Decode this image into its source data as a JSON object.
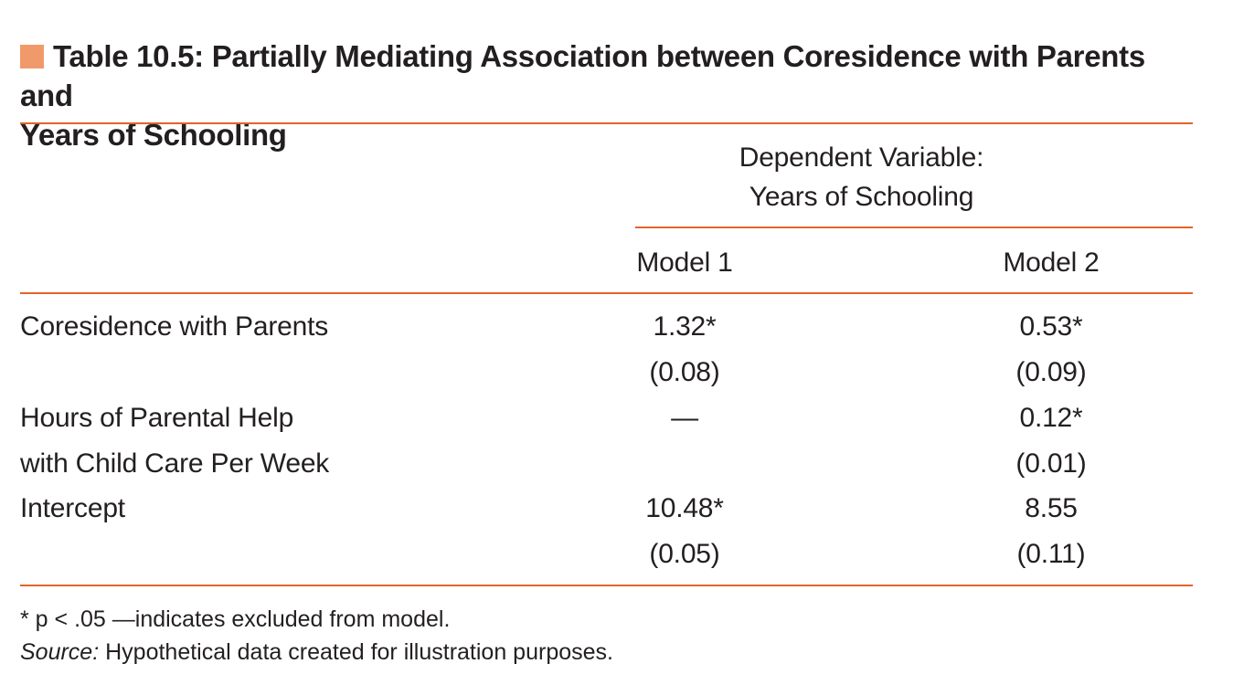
{
  "table": {
    "title_line1": "Table 10.5:  Partially Mediating Association between Coresidence with Parents and",
    "title_line2": "Years of Schooling",
    "header": {
      "dep_var_line1": "Dependent Variable:",
      "dep_var_line2": "Years of Schooling",
      "model1": "Model 1",
      "model2": "Model 2"
    },
    "rows": [
      {
        "label": "Coresidence with Parents",
        "m1": "1.32*",
        "m2": "0.53*"
      },
      {
        "label": "",
        "m1": "(0.08)",
        "m2": "(0.09)"
      },
      {
        "label": "Hours of Parental Help",
        "m1": "—",
        "m2": "0.12*"
      },
      {
        "label": "with Child Care Per Week",
        "m1": "",
        "m2": "(0.01)"
      },
      {
        "label": "Intercept",
        "m1": "10.48*",
        "m2": "8.55"
      },
      {
        "label": "",
        "m1": "(0.05)",
        "m2": "(0.11)"
      }
    ],
    "footnote": "* p < .05 —indicates excluded from model.",
    "source_label": "Source:",
    "source_text": " Hypothetical data created for illustration purposes."
  },
  "colors": {
    "accent_square": "#f0996a",
    "rule": "#e0652a",
    "text": "#231f20"
  }
}
